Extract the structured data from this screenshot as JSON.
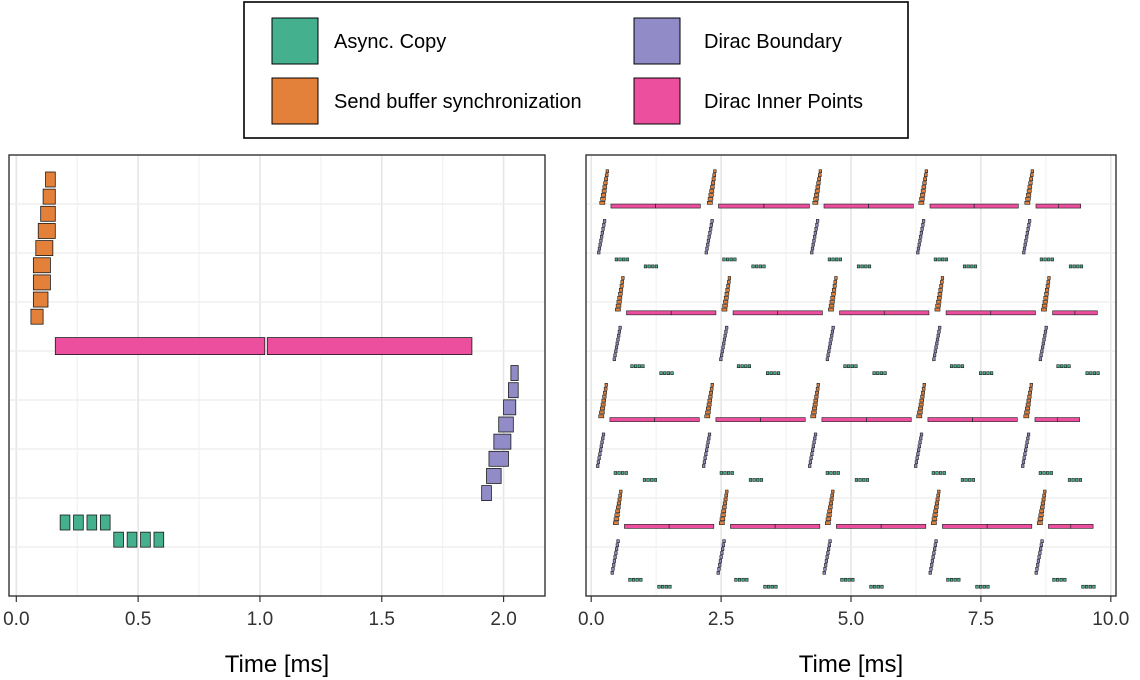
{
  "colors": {
    "async_copy": "#44B08E",
    "send_sync": "#E3803A",
    "dirac_boundary": "#918CC7",
    "dirac_inner": "#EC4F9D"
  },
  "legend": {
    "items": [
      {
        "label": "Async. Copy",
        "color": "#44B08E"
      },
      {
        "label": "Send buffer synchronization",
        "color": "#E3803A"
      },
      {
        "label": "Dirac Boundary",
        "color": "#918CC7"
      },
      {
        "label": "Dirac Inner Points",
        "color": "#EC4F9D"
      }
    ]
  },
  "chart_data": [
    {
      "type": "gantt",
      "xlabel": "Time [ms]",
      "xlim": [
        -0.03,
        2.17
      ],
      "ylim": [
        0,
        18
      ],
      "x_ticks": [
        "0.0",
        "0.5",
        "1.0",
        "1.5",
        "2.0"
      ],
      "x_tick_values": [
        0.0,
        0.5,
        1.0,
        1.5,
        2.0
      ],
      "grid": true,
      "bars": [
        {
          "series": "Send buffer synchronization",
          "row": 17,
          "start": 0.12,
          "end": 0.16
        },
        {
          "series": "Send buffer synchronization",
          "row": 16.3,
          "start": 0.11,
          "end": 0.16
        },
        {
          "series": "Send buffer synchronization",
          "row": 15.6,
          "start": 0.1,
          "end": 0.16
        },
        {
          "series": "Send buffer synchronization",
          "row": 14.9,
          "start": 0.09,
          "end": 0.16
        },
        {
          "series": "Send buffer synchronization",
          "row": 14.2,
          "start": 0.08,
          "end": 0.15
        },
        {
          "series": "Send buffer synchronization",
          "row": 13.5,
          "start": 0.07,
          "end": 0.14
        },
        {
          "series": "Send buffer synchronization",
          "row": 12.8,
          "start": 0.07,
          "end": 0.14
        },
        {
          "series": "Send buffer synchronization",
          "row": 12.1,
          "start": 0.07,
          "end": 0.13
        },
        {
          "series": "Send buffer synchronization",
          "row": 11.4,
          "start": 0.06,
          "end": 0.11
        },
        {
          "series": "Dirac Inner Points",
          "row": 10.2,
          "start": 0.16,
          "end": 1.02
        },
        {
          "series": "Dirac Inner Points",
          "row": 10.2,
          "start": 1.03,
          "end": 1.87
        },
        {
          "series": "Dirac Boundary",
          "row": 9.1,
          "start": 2.03,
          "end": 2.06
        },
        {
          "series": "Dirac Boundary",
          "row": 8.4,
          "start": 2.02,
          "end": 2.06
        },
        {
          "series": "Dirac Boundary",
          "row": 7.7,
          "start": 2.0,
          "end": 2.05
        },
        {
          "series": "Dirac Boundary",
          "row": 7.0,
          "start": 1.98,
          "end": 2.04
        },
        {
          "series": "Dirac Boundary",
          "row": 6.3,
          "start": 1.96,
          "end": 2.03
        },
        {
          "series": "Dirac Boundary",
          "row": 5.6,
          "start": 1.94,
          "end": 2.02
        },
        {
          "series": "Dirac Boundary",
          "row": 4.9,
          "start": 1.93,
          "end": 1.99
        },
        {
          "series": "Dirac Boundary",
          "row": 4.2,
          "start": 1.91,
          "end": 1.95
        },
        {
          "series": "Async. Copy",
          "row": 3.0,
          "start": 0.18,
          "end": 0.22
        },
        {
          "series": "Async. Copy",
          "row": 3.0,
          "start": 0.235,
          "end": 0.275
        },
        {
          "series": "Async. Copy",
          "row": 3.0,
          "start": 0.29,
          "end": 0.33
        },
        {
          "series": "Async. Copy",
          "row": 3.0,
          "start": 0.345,
          "end": 0.385
        },
        {
          "series": "Async. Copy",
          "row": 2.3,
          "start": 0.4,
          "end": 0.44
        },
        {
          "series": "Async. Copy",
          "row": 2.3,
          "start": 0.455,
          "end": 0.495
        },
        {
          "series": "Async. Copy",
          "row": 2.3,
          "start": 0.51,
          "end": 0.55
        },
        {
          "series": "Async. Copy",
          "row": 2.3,
          "start": 0.565,
          "end": 0.605
        }
      ]
    },
    {
      "type": "gantt",
      "xlabel": "Time [ms]",
      "xlim": [
        -0.1,
        10.1
      ],
      "ylim": [
        0,
        19
      ],
      "x_ticks": [
        "0.0",
        "2.5",
        "5.0",
        "7.5",
        "10.0"
      ],
      "x_tick_values": [
        0.0,
        2.5,
        5.0,
        7.5,
        10.0
      ],
      "grid": true,
      "lanes": [
        {
          "send_center": 0.28,
          "boundary_center": 0.12,
          "row_offset": 15.2,
          "starts": [
            0.28,
            2.35,
            4.38,
            6.42,
            8.46
          ],
          "inner_lengths": [
            1.72,
            1.75,
            1.72,
            1.7,
            0.86
          ]
        },
        {
          "send_center": 0.58,
          "boundary_center": 0.4,
          "row_offset": 10.6,
          "starts": [
            0.58,
            2.63,
            4.68,
            6.73,
            8.78
          ],
          "inner_lengths": [
            1.72,
            1.72,
            1.72,
            1.72,
            0.86
          ]
        },
        {
          "send_center": 0.26,
          "boundary_center": 0.1,
          "row_offset": 6.0,
          "starts": [
            0.26,
            2.3,
            4.34,
            6.38,
            8.44
          ],
          "inner_lengths": [
            1.72,
            1.72,
            1.72,
            1.72,
            0.86
          ]
        },
        {
          "send_center": 0.54,
          "boundary_center": 0.36,
          "row_offset": 1.4,
          "starts": [
            0.54,
            2.58,
            4.62,
            6.66,
            8.7
          ],
          "inner_lengths": [
            1.72,
            1.72,
            1.72,
            1.72,
            0.86
          ]
        }
      ]
    }
  ]
}
